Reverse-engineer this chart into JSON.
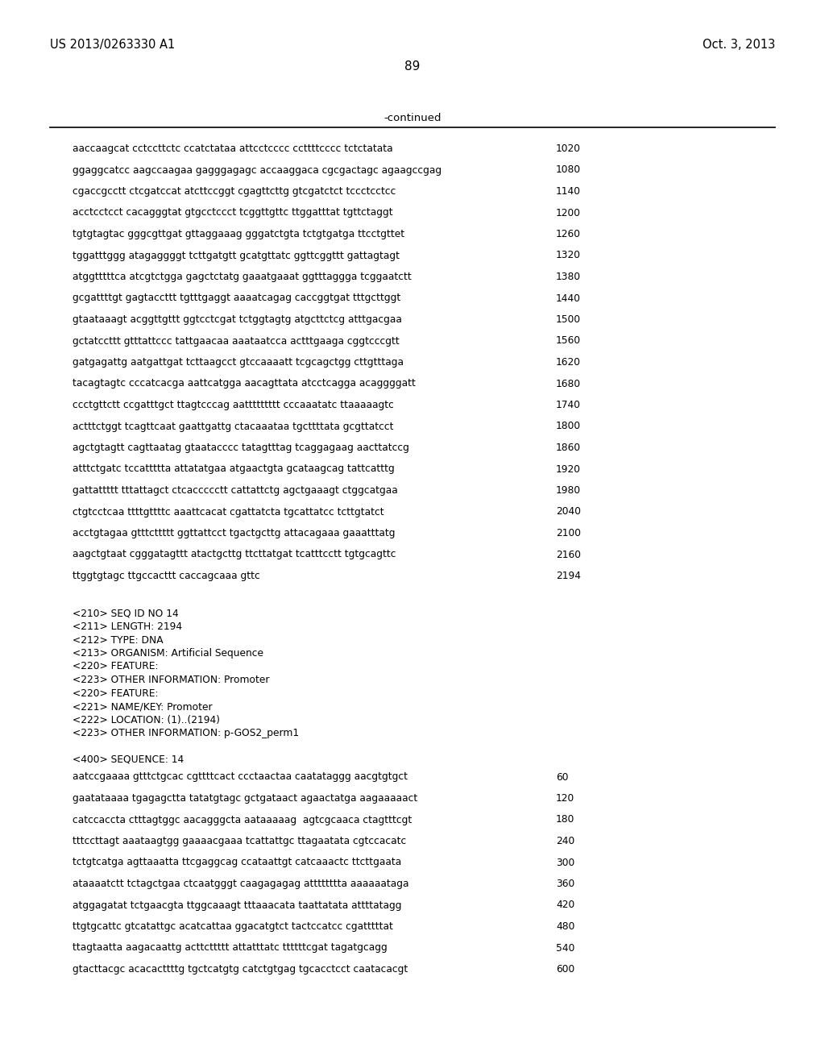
{
  "header_left": "US 2013/0263330 A1",
  "header_right": "Oct. 3, 2013",
  "page_number": "89",
  "continued_label": "-continued",
  "background_color": "#ffffff",
  "text_color": "#000000",
  "seq_lines": [
    [
      "aaccaagcat cctccttctc ccatctataa attcctcccc ccttttcccc tctctatata",
      "1020"
    ],
    [
      "ggaggcatcc aagccaagaa gagggagagc accaaggaca cgcgactagc agaagccgag",
      "1080"
    ],
    [
      "cgaccgcctt ctcgatccat atcttccggt cgagttcttg gtcgatctct tccctcctcc",
      "1140"
    ],
    [
      "acctcctcct cacagggtat gtgcctccct tcggttgttc ttggatttat tgttctaggt",
      "1200"
    ],
    [
      "tgtgtagtac gggcgttgat gttaggaaag gggatctgta tctgtgatga ttcctgttet",
      "1260"
    ],
    [
      "tggatttggg atagaggggt tcttgatgtt gcatgttatc ggttcggttt gattagtagt",
      "1320"
    ],
    [
      "atggtttttca atcgtctgga gagctctatg gaaatgaaat ggtttaggga tcggaatctt",
      "1380"
    ],
    [
      "gcgattttgt gagtaccttt tgtttgaggt aaaatcagag caccggtgat tttgcttggt",
      "1440"
    ],
    [
      "gtaataaagt acggttgttt ggtcctcgat tctggtagtg atgcttctcg atttgacgaa",
      "1500"
    ],
    [
      "gctatccttt gtttattccc tattgaacaa aaataatcca actttgaaga cggtcccgtt",
      "1560"
    ],
    [
      "gatgagattg aatgattgat tcttaagcct gtccaaaatt tcgcagctgg cttgtttaga",
      "1620"
    ],
    [
      "tacagtagtc cccatcacga aattcatgga aacagttata atcctcagga acaggggatt",
      "1680"
    ],
    [
      "ccctgttctt ccgatttgct ttagtcccag aattttttttt cccaaatatc ttaaaaagtc",
      "1740"
    ],
    [
      "actttctggt tcagttcaat gaattgattg ctacaaataa tgcttttata gcgttatcct",
      "1800"
    ],
    [
      "agctgtagtt cagttaatag gtaatacccc tatagtttag tcaggagaag aacttatccg",
      "1860"
    ],
    [
      "atttctgatc tccattttta attatatgaa atgaactgta gcataagcag tattcatttg",
      "1920"
    ],
    [
      "gattattttt tttattagct ctcaccccctt cattattctg agctgaaagt ctggcatgaa",
      "1980"
    ],
    [
      "ctgtcctcaa ttttgttttc aaattcacat cgattatcta tgcattatcc tcttgtatct",
      "2040"
    ],
    [
      "acctgtagaa gtttcttttt ggttattcct tgactgcttg attacagaaa gaaatttatg",
      "2100"
    ],
    [
      "aagctgtaat cgggatagttt atactgcttg ttcttatgat tcatttcctt tgtgcagttc",
      "2160"
    ],
    [
      "ttggtgtagc ttgccacttt caccagcaaa gttc",
      "2194"
    ]
  ],
  "feature_lines": [
    "<210> SEQ ID NO 14",
    "<211> LENGTH: 2194",
    "<212> TYPE: DNA",
    "<213> ORGANISM: Artificial Sequence",
    "<220> FEATURE:",
    "<223> OTHER INFORMATION: Promoter",
    "<220> FEATURE:",
    "<221> NAME/KEY: Promoter",
    "<222> LOCATION: (1)..(2194)",
    "<223> OTHER INFORMATION: p-GOS2_perm1"
  ],
  "seq400_header": "<400> SEQUENCE: 14",
  "seq400_lines": [
    [
      "aatccgaaaa gtttctgcac cgttttcact ccctaactaa caatataggg aacgtgtgct",
      "60"
    ],
    [
      "gaatataaaa tgagagctta tatatgtagc gctgataact agaactatga aagaaaaact",
      "120"
    ],
    [
      "catccaccta ctttagtggc aacagggcta aataaaaag  agtcgcaaca ctagtttcgt",
      "180"
    ],
    [
      "tttccttagt aaataagtgg gaaaacgaaa tcattattgc ttagaatata cgtccacatc",
      "240"
    ],
    [
      "tctgtcatga agttaaatta ttcgaggcag ccataattgt catcaaactc ttcttgaata",
      "300"
    ],
    [
      "ataaaatctt tctagctgaa ctcaatgggt caagagagag atttttttta aaaaaataga",
      "360"
    ],
    [
      "atggagatat tctgaacgta ttggcaaagt tttaaacata taattatata attttatagg",
      "420"
    ],
    [
      "ttgtgcattc gtcatattgc acatcattaa ggacatgtct tactccatcc cgatttttat",
      "480"
    ],
    [
      "ttagtaatta aagacaattg acttcttttt attatttatc ttttttcgat tagatgcagg",
      "540"
    ],
    [
      "gtacttacgc acacacttttg tgctcatgtg catctgtgag tgcacctcct caatacacgt",
      "600"
    ]
  ]
}
